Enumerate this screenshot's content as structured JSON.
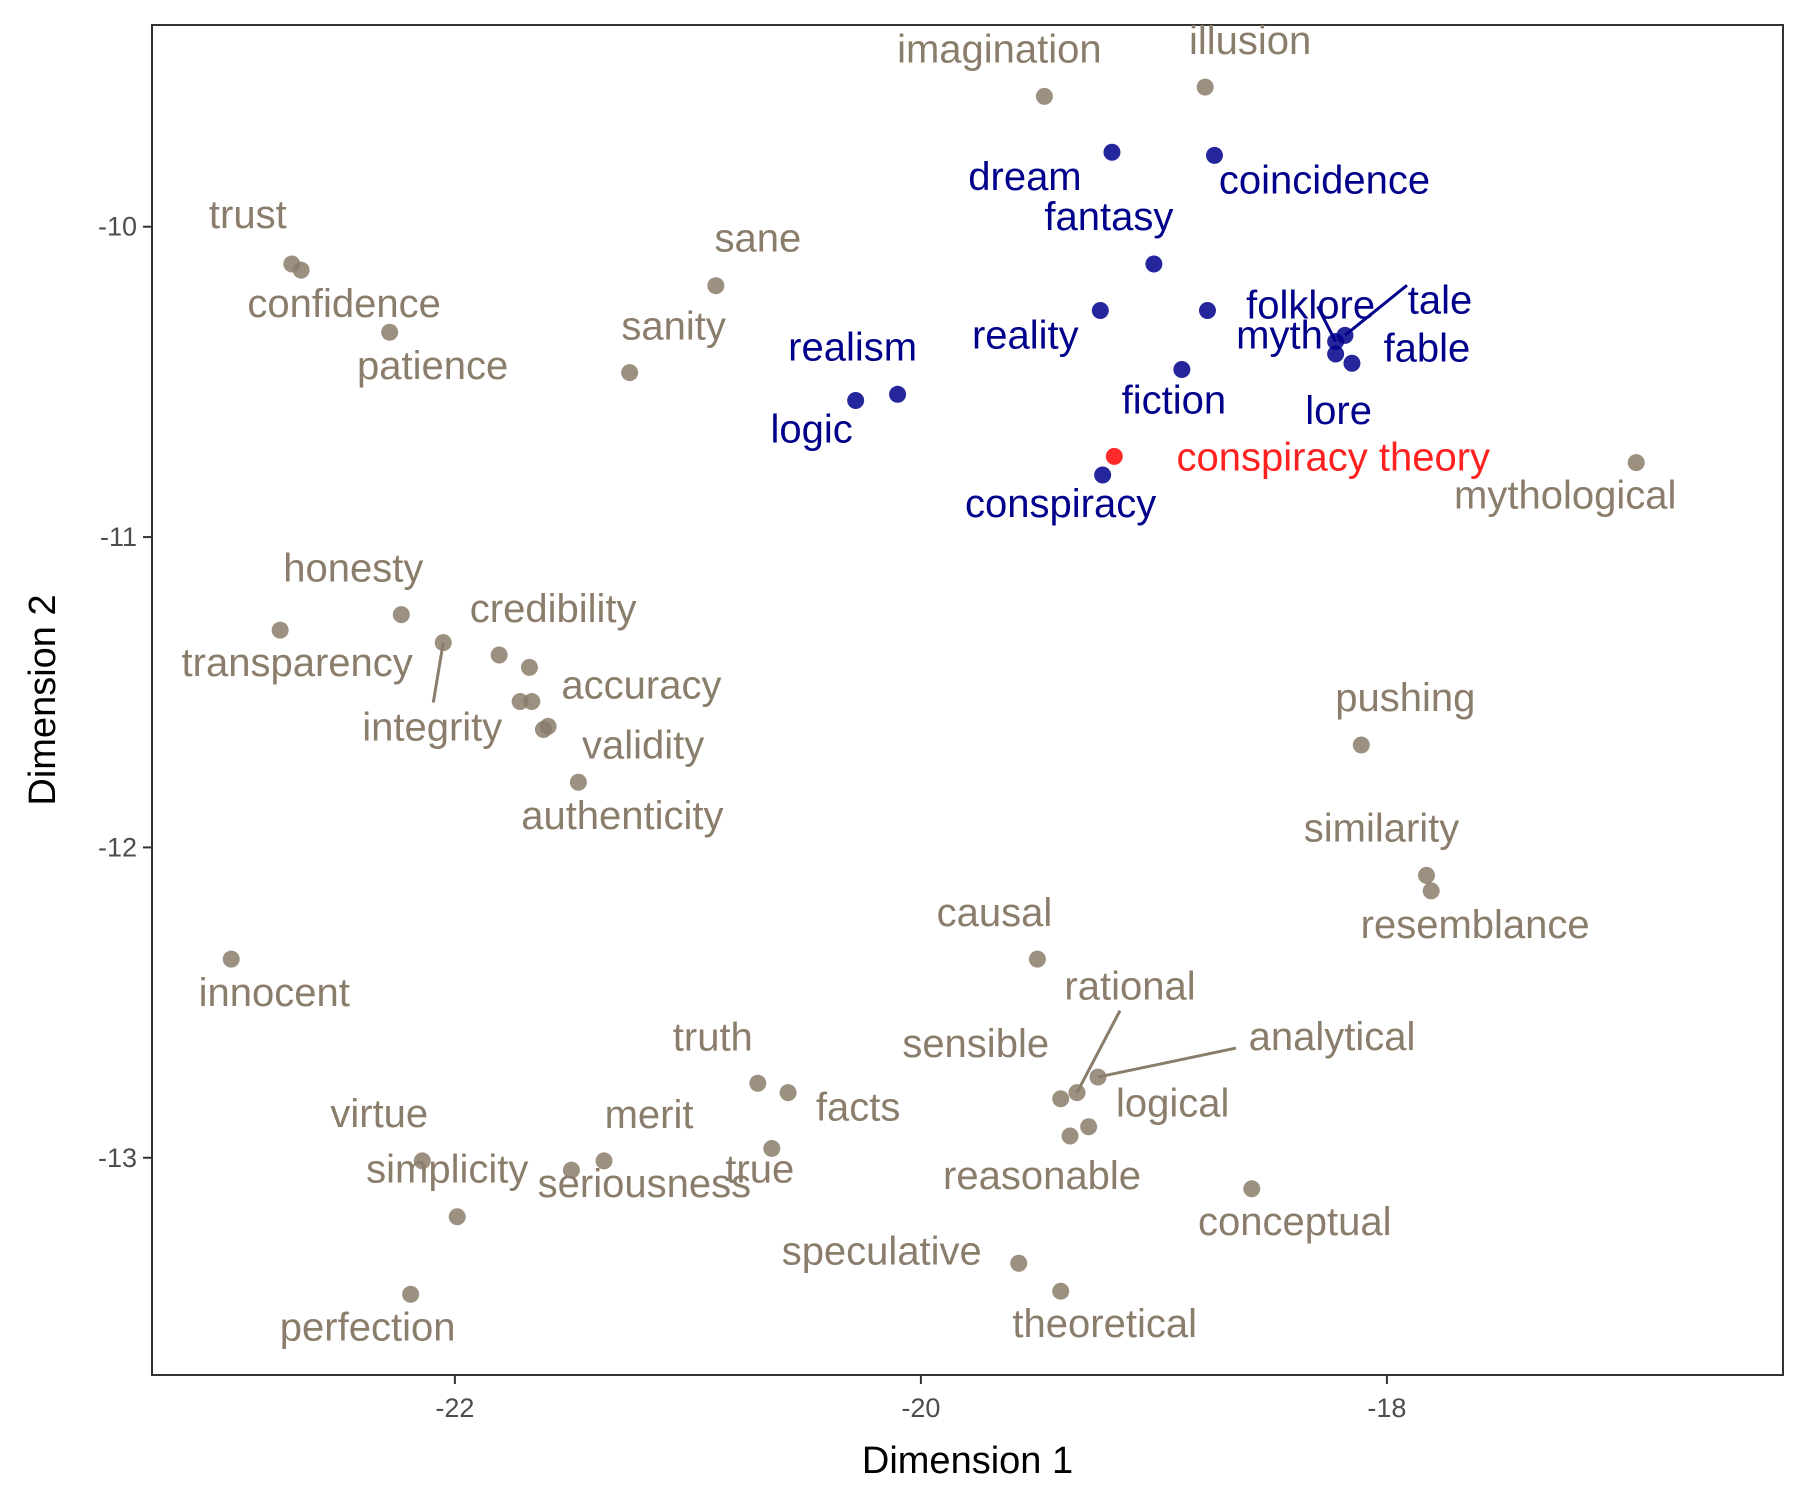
{
  "chart_data": {
    "type": "scatter",
    "title": "",
    "xlabel": "Dimension 1",
    "ylabel": "Dimension 2",
    "xlim": [
      -23.3,
      -16.3
    ],
    "ylim": [
      -13.7,
      -9.35
    ],
    "x_ticks": [
      -22,
      -20,
      -18
    ],
    "y_ticks": [
      -10,
      -11,
      -12,
      -13
    ],
    "x_tick_labels": [
      "-22",
      "-20",
      "-18"
    ],
    "y_tick_labels": [
      "-10",
      "-11",
      "-12",
      "-13"
    ],
    "grid": false,
    "legend": "none",
    "colors": {
      "related": "#00008b",
      "other": "#8b7d6b",
      "target": "#ff2020"
    },
    "points": [
      {
        "label": "imagination",
        "x": -19.47,
        "y": -9.58,
        "group": "other"
      },
      {
        "label": "illusion",
        "x": -18.78,
        "y": -9.55,
        "group": "other"
      },
      {
        "label": "dream",
        "x": -19.18,
        "y": -9.76,
        "group": "related"
      },
      {
        "label": "coincidence",
        "x": -18.74,
        "y": -9.77,
        "group": "related"
      },
      {
        "label": "fantasy",
        "x": -19.0,
        "y": -10.12,
        "group": "related"
      },
      {
        "label": "reality",
        "x": -19.23,
        "y": -10.27,
        "group": "related"
      },
      {
        "label": "myth",
        "x": -18.77,
        "y": -10.27,
        "group": "related"
      },
      {
        "label": "folklore",
        "x": -18.22,
        "y": -10.37,
        "group": "related"
      },
      {
        "label": "tale",
        "x": -18.18,
        "y": -10.35,
        "group": "related"
      },
      {
        "label": "fable",
        "x": -18.15,
        "y": -10.44,
        "group": "related"
      },
      {
        "label": "lore",
        "x": -18.22,
        "y": -10.41,
        "group": "related"
      },
      {
        "label": "fiction",
        "x": -18.88,
        "y": -10.46,
        "group": "related"
      },
      {
        "label": "realism",
        "x": -20.1,
        "y": -10.54,
        "group": "related"
      },
      {
        "label": "logic",
        "x": -20.28,
        "y": -10.56,
        "group": "related"
      },
      {
        "label": "conspiracy",
        "x": -19.22,
        "y": -10.8,
        "group": "related"
      },
      {
        "label": "conspiracy theory",
        "x": -19.17,
        "y": -10.74,
        "group": "target"
      },
      {
        "label": "mythological",
        "x": -16.93,
        "y": -10.76,
        "group": "other"
      },
      {
        "label": "trust",
        "x": -22.7,
        "y": -10.12,
        "group": "other"
      },
      {
        "label": "confidence",
        "x": -22.66,
        "y": -10.14,
        "group": "other"
      },
      {
        "label": "patience",
        "x": -22.28,
        "y": -10.34,
        "group": "other"
      },
      {
        "label": "sane",
        "x": -20.88,
        "y": -10.19,
        "group": "other"
      },
      {
        "label": "sanity",
        "x": -21.25,
        "y": -10.47,
        "group": "other"
      },
      {
        "label": "honesty",
        "x": -22.23,
        "y": -11.25,
        "group": "other"
      },
      {
        "label": "transparency",
        "x": -22.75,
        "y": -11.3,
        "group": "other"
      },
      {
        "label": "integrity",
        "x": -22.05,
        "y": -11.34,
        "group": "other"
      },
      {
        "label": "credibility",
        "x": -21.81,
        "y": -11.38,
        "group": "other"
      },
      {
        "label": "accuracy",
        "x": -21.68,
        "y": -11.42,
        "group": "other"
      },
      {
        "label": "validity",
        "x": -21.6,
        "y": -11.61,
        "group": "other"
      },
      {
        "label": "authenticity",
        "x": -21.47,
        "y": -11.79,
        "group": "other"
      },
      {
        "label": "pushing",
        "x": -18.11,
        "y": -11.67,
        "group": "other"
      },
      {
        "label": "similarity",
        "x": -17.83,
        "y": -12.09,
        "group": "other"
      },
      {
        "label": "resemblance",
        "x": -17.81,
        "y": -12.14,
        "group": "other"
      },
      {
        "label": "causal",
        "x": -19.5,
        "y": -12.36,
        "group": "other"
      },
      {
        "label": "innocent",
        "x": -22.96,
        "y": -12.36,
        "group": "other"
      },
      {
        "label": "rational",
        "x": -19.33,
        "y": -12.79,
        "group": "other"
      },
      {
        "label": "sensible",
        "x": -19.4,
        "y": -12.81,
        "group": "other"
      },
      {
        "label": "analytical",
        "x": -19.24,
        "y": -12.74,
        "group": "other"
      },
      {
        "label": "logical",
        "x": -19.28,
        "y": -12.9,
        "group": "other"
      },
      {
        "label": "reasonable",
        "x": -19.36,
        "y": -12.93,
        "group": "other"
      },
      {
        "label": "truth",
        "x": -20.7,
        "y": -12.76,
        "group": "other"
      },
      {
        "label": "facts",
        "x": -20.57,
        "y": -12.79,
        "group": "other"
      },
      {
        "label": "true",
        "x": -20.64,
        "y": -12.97,
        "group": "other"
      },
      {
        "label": "conceptual",
        "x": -18.58,
        "y": -13.1,
        "group": "other"
      },
      {
        "label": "speculative",
        "x": -19.58,
        "y": -13.34,
        "group": "other"
      },
      {
        "label": "theoretical",
        "x": -19.4,
        "y": -13.43,
        "group": "other"
      },
      {
        "label": "virtue",
        "x": -22.14,
        "y": -13.01,
        "group": "other"
      },
      {
        "label": "merit",
        "x": -21.36,
        "y": -13.01,
        "group": "other"
      },
      {
        "label": "seriousness",
        "x": -21.5,
        "y": -13.04,
        "group": "other"
      },
      {
        "label": "simplicity",
        "x": -21.99,
        "y": -13.19,
        "group": "other"
      },
      {
        "label": "perfection",
        "x": -22.19,
        "y": -13.44,
        "group": "other"
      },
      {
        "label": "",
        "x": -21.72,
        "y": -11.53,
        "group": "other"
      },
      {
        "label": "",
        "x": -21.67,
        "y": -11.53,
        "group": "other"
      },
      {
        "label": "",
        "x": -21.62,
        "y": -11.62,
        "group": "other"
      }
    ]
  }
}
